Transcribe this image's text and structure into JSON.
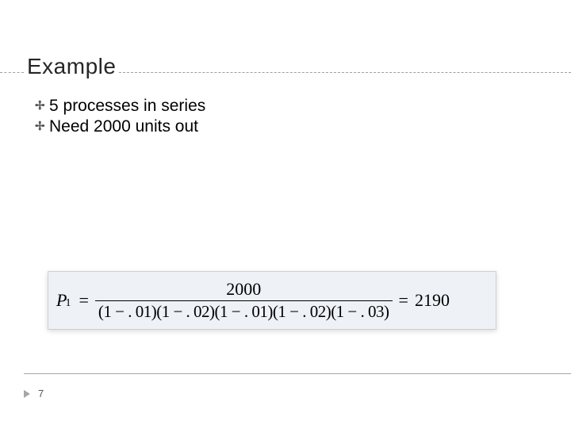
{
  "colors": {
    "dash": "#9e9e9e",
    "title_text": "#262626",
    "bullet_glyph": "#595959",
    "formula_bg": "#eef1f5",
    "bot_line": "#a6a6a6",
    "footer_tri": "#a6a6a6",
    "footer_num": "#595959"
  },
  "title": "Example",
  "bullets": [
    "5 processes in series",
    "Need 2000 units out"
  ],
  "formula": {
    "lhs_var": "P",
    "lhs_sub": "1",
    "numerator": "2000",
    "denominator": "(1 − . 01)(1 − . 02)(1 − . 01)(1 − . 02)(1 − . 03)",
    "result": "2190"
  },
  "page_number": "7",
  "fontsize": {
    "title": 28,
    "bullet": 21,
    "formula": 22,
    "footer": 13
  }
}
